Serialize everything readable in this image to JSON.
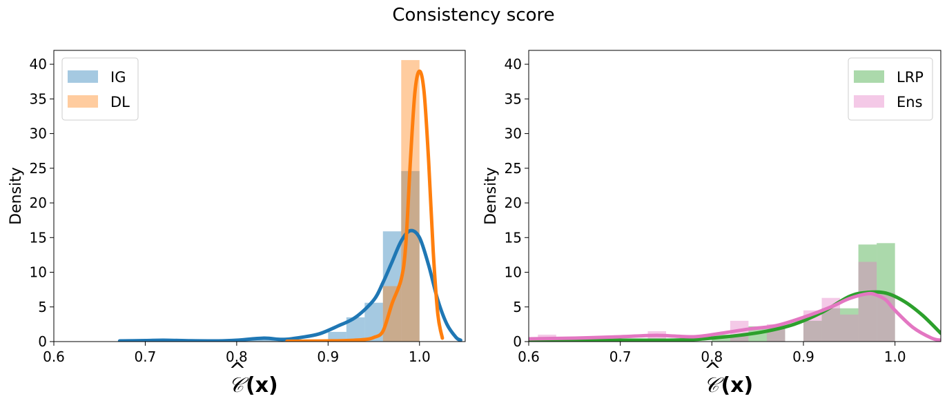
{
  "figure": {
    "suptitle": "Consistency score"
  },
  "chart_data": [
    {
      "type": "histogram-kde",
      "xlabel_parts": {
        "hat": "^",
        "script": "𝒞",
        "rest": "(x)"
      },
      "ylabel": "Density",
      "xlim": [
        0.6,
        1.05
      ],
      "ylim": [
        0,
        42
      ],
      "xticks": [
        0.6,
        0.7,
        0.8,
        0.9,
        1.0
      ],
      "xtick_labels": [
        "0.6",
        "0.7",
        "0.8",
        "0.9",
        "1.0"
      ],
      "yticks": [
        0,
        5,
        10,
        15,
        20,
        25,
        30,
        35,
        40
      ],
      "ytick_labels": [
        "0",
        "5",
        "10",
        "15",
        "20",
        "25",
        "30",
        "35",
        "40"
      ],
      "legend_loc": "upper left",
      "series": [
        {
          "name": "IG",
          "color": "#1f77b4",
          "bins": [
            [
              0.8,
              0.82,
              0.2
            ],
            [
              0.82,
              0.84,
              0.5
            ],
            [
              0.84,
              0.86,
              0.6
            ],
            [
              0.9,
              0.92,
              1.4
            ],
            [
              0.92,
              0.94,
              3.5
            ],
            [
              0.94,
              0.96,
              5.6
            ],
            [
              0.96,
              0.98,
              15.9
            ],
            [
              0.98,
              1.0,
              24.6
            ]
          ],
          "kde": [
            [
              0.672,
              0.1
            ],
            [
              0.7,
              0.15
            ],
            [
              0.72,
              0.2
            ],
            [
              0.75,
              0.12
            ],
            [
              0.78,
              0.1
            ],
            [
              0.8,
              0.2
            ],
            [
              0.83,
              0.5
            ],
            [
              0.85,
              0.3
            ],
            [
              0.87,
              0.6
            ],
            [
              0.89,
              1.1
            ],
            [
              0.91,
              2.2
            ],
            [
              0.93,
              3.5
            ],
            [
              0.95,
              6.0
            ],
            [
              0.96,
              8.5
            ],
            [
              0.97,
              11.5
            ],
            [
              0.98,
              14.5
            ],
            [
              0.99,
              16.0
            ],
            [
              1.0,
              15.0
            ],
            [
              1.01,
              11.0
            ],
            [
              1.02,
              6.0
            ],
            [
              1.03,
              2.5
            ],
            [
              1.04,
              0.6
            ],
            [
              1.045,
              0.2
            ]
          ]
        },
        {
          "name": "DL",
          "color": "#ff7f0e",
          "bins": [
            [
              0.96,
              0.98,
              8.0
            ],
            [
              0.98,
              1.0,
              40.6
            ]
          ],
          "kde": [
            [
              0.855,
              0.05
            ],
            [
              0.88,
              0.08
            ],
            [
              0.9,
              0.1
            ],
            [
              0.92,
              0.15
            ],
            [
              0.94,
              0.3
            ],
            [
              0.95,
              0.6
            ],
            [
              0.96,
              1.5
            ],
            [
              0.97,
              5.5
            ],
            [
              0.98,
              9.0
            ],
            [
              0.985,
              14.0
            ],
            [
              0.99,
              26.0
            ],
            [
              0.995,
              36.0
            ],
            [
              1.0,
              39.0
            ],
            [
              1.005,
              36.0
            ],
            [
              1.01,
              26.0
            ],
            [
              1.015,
              13.0
            ],
            [
              1.02,
              4.0
            ],
            [
              1.025,
              0.5
            ]
          ]
        }
      ]
    },
    {
      "type": "histogram-kde",
      "xlabel_parts": {
        "hat": "^",
        "script": "𝒞",
        "rest": "(x)"
      },
      "ylabel": "Density",
      "xlim": [
        0.6,
        1.05
      ],
      "ylim": [
        0,
        42
      ],
      "xticks": [
        0.6,
        0.7,
        0.8,
        0.9,
        1.0
      ],
      "xtick_labels": [
        "0.6",
        "0.7",
        "0.8",
        "0.9",
        "1.0"
      ],
      "yticks": [
        0,
        5,
        10,
        15,
        20,
        25,
        30,
        35,
        40
      ],
      "ytick_labels": [
        "0",
        "5",
        "10",
        "15",
        "20",
        "25",
        "30",
        "35",
        "40"
      ],
      "legend_loc": "upper right",
      "series": [
        {
          "name": "LRP",
          "color": "#2ca02c",
          "bins": [
            [
              0.8,
              0.84,
              1.0
            ],
            [
              0.84,
              0.88,
              2.2
            ],
            [
              0.9,
              0.92,
              3.0
            ],
            [
              0.92,
              0.96,
              4.8
            ],
            [
              0.96,
              0.98,
              14.0
            ],
            [
              0.98,
              1.0,
              14.2
            ]
          ],
          "kde": [
            [
              0.6,
              0.1
            ],
            [
              0.65,
              0.1
            ],
            [
              0.7,
              0.2
            ],
            [
              0.75,
              0.2
            ],
            [
              0.78,
              0.3
            ],
            [
              0.8,
              0.5
            ],
            [
              0.83,
              0.9
            ],
            [
              0.86,
              1.5
            ],
            [
              0.89,
              2.5
            ],
            [
              0.92,
              4.2
            ],
            [
              0.95,
              6.5
            ],
            [
              0.97,
              7.1
            ],
            [
              0.99,
              7.0
            ],
            [
              1.01,
              5.8
            ],
            [
              1.03,
              3.8
            ],
            [
              1.05,
              1.2
            ]
          ]
        },
        {
          "name": "Ens",
          "color": "#e377c2",
          "bins": [
            [
              0.61,
              0.63,
              1.0
            ],
            [
              0.73,
              0.75,
              1.5
            ],
            [
              0.82,
              0.84,
              3.0
            ],
            [
              0.86,
              0.88,
              2.5
            ],
            [
              0.9,
              0.92,
              4.5
            ],
            [
              0.92,
              0.94,
              6.3
            ],
            [
              0.94,
              0.96,
              3.9
            ],
            [
              0.96,
              0.98,
              11.5
            ],
            [
              0.98,
              1.0,
              7.0
            ]
          ],
          "kde": [
            [
              0.6,
              0.4
            ],
            [
              0.65,
              0.5
            ],
            [
              0.7,
              0.7
            ],
            [
              0.74,
              0.9
            ],
            [
              0.78,
              0.7
            ],
            [
              0.81,
              1.2
            ],
            [
              0.84,
              1.8
            ],
            [
              0.87,
              2.3
            ],
            [
              0.9,
              3.5
            ],
            [
              0.93,
              5.0
            ],
            [
              0.95,
              6.2
            ],
            [
              0.97,
              6.9
            ],
            [
              0.98,
              6.7
            ],
            [
              0.99,
              6.0
            ],
            [
              1.0,
              4.5
            ],
            [
              1.02,
              2.0
            ],
            [
              1.04,
              0.5
            ],
            [
              1.05,
              0.2
            ]
          ]
        }
      ]
    }
  ]
}
